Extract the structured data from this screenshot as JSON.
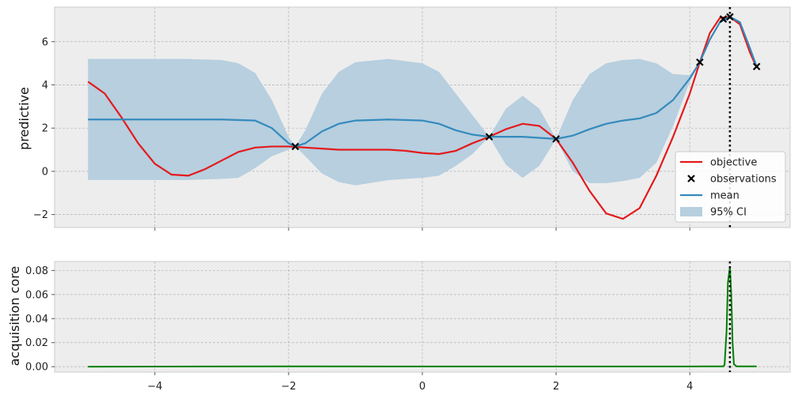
{
  "chart_data": [
    {
      "type": "line",
      "ylabel": "predictive",
      "xlim": [
        -5.5,
        5.5
      ],
      "ylim": [
        -2.6,
        7.6
      ],
      "yticks": [
        -2,
        0,
        2,
        4,
        6
      ],
      "ytick_labels": [
        "−2",
        "0",
        "2",
        "4",
        "6"
      ],
      "xticks": [
        -4,
        -2,
        0,
        2,
        4
      ],
      "grid": true,
      "legend_position": "bottom-right",
      "legend": [
        "objective",
        "observations",
        "mean",
        "95% CI"
      ],
      "colors": {
        "objective": "#e41a1c",
        "mean": "#348abd",
        "ci": "#b7cfdf",
        "observations": "#000000",
        "background": "#ededed"
      },
      "objective": {
        "x": [
          -5.0,
          -4.75,
          -4.5,
          -4.25,
          -4.0,
          -3.75,
          -3.5,
          -3.25,
          -3.0,
          -2.75,
          -2.5,
          -2.25,
          -2.0,
          -1.75,
          -1.5,
          -1.25,
          -1.0,
          -0.75,
          -0.5,
          -0.25,
          0.0,
          0.25,
          0.5,
          0.75,
          1.0,
          1.25,
          1.5,
          1.75,
          2.0,
          2.25,
          2.5,
          2.75,
          3.0,
          3.25,
          3.5,
          3.75,
          4.0,
          4.15,
          4.3,
          4.45,
          4.6,
          4.75,
          4.9,
          5.0
        ],
        "y": [
          4.15,
          3.6,
          2.5,
          1.3,
          0.35,
          -0.15,
          -0.2,
          0.1,
          0.5,
          0.9,
          1.1,
          1.15,
          1.15,
          1.1,
          1.05,
          1.0,
          1.0,
          1.0,
          1.0,
          0.95,
          0.85,
          0.8,
          0.95,
          1.3,
          1.6,
          1.95,
          2.2,
          2.1,
          1.5,
          0.4,
          -0.9,
          -1.95,
          -2.2,
          -1.7,
          -0.2,
          1.6,
          3.6,
          5.05,
          6.4,
          7.1,
          7.15,
          6.8,
          5.5,
          4.8
        ]
      },
      "mean": {
        "x": [
          -5.0,
          -4.5,
          -4.0,
          -3.5,
          -3.0,
          -2.5,
          -2.25,
          -2.0,
          -1.9,
          -1.75,
          -1.5,
          -1.25,
          -1.0,
          -0.5,
          0.0,
          0.25,
          0.5,
          0.75,
          1.0,
          1.25,
          1.5,
          1.75,
          2.0,
          2.25,
          2.5,
          2.75,
          3.0,
          3.25,
          3.5,
          3.75,
          4.0,
          4.15,
          4.3,
          4.45,
          4.6,
          4.75,
          4.9,
          5.0
        ],
        "y": [
          2.4,
          2.4,
          2.4,
          2.4,
          2.4,
          2.35,
          2.0,
          1.3,
          1.15,
          1.3,
          1.85,
          2.2,
          2.35,
          2.4,
          2.35,
          2.2,
          1.9,
          1.7,
          1.6,
          1.6,
          1.6,
          1.55,
          1.5,
          1.65,
          1.95,
          2.2,
          2.35,
          2.45,
          2.7,
          3.3,
          4.3,
          5.05,
          6.1,
          6.9,
          7.15,
          6.9,
          5.7,
          4.85
        ]
      },
      "ci": {
        "x": [
          -5.0,
          -4.5,
          -4.0,
          -3.5,
          -3.0,
          -2.75,
          -2.5,
          -2.25,
          -2.0,
          -1.9,
          -1.75,
          -1.5,
          -1.25,
          -1.0,
          -0.5,
          0.0,
          0.25,
          0.5,
          0.75,
          1.0,
          1.25,
          1.5,
          1.75,
          2.0,
          2.25,
          2.5,
          2.75,
          3.0,
          3.25,
          3.5,
          3.75,
          4.0,
          4.15,
          4.3,
          4.45,
          4.6,
          4.75,
          4.9,
          5.0
        ],
        "upper": [
          5.2,
          5.2,
          5.2,
          5.2,
          5.15,
          5.0,
          4.55,
          3.3,
          1.6,
          1.15,
          1.9,
          3.6,
          4.6,
          5.05,
          5.2,
          5.0,
          4.6,
          3.6,
          2.6,
          1.6,
          2.9,
          3.5,
          2.9,
          1.5,
          3.3,
          4.5,
          5.0,
          5.15,
          5.2,
          5.0,
          4.5,
          4.45,
          5.05,
          6.15,
          6.95,
          7.2,
          6.95,
          5.75,
          4.9
        ],
        "lower": [
          -0.4,
          -0.4,
          -0.4,
          -0.4,
          -0.35,
          -0.3,
          0.15,
          0.7,
          1.0,
          1.15,
          0.7,
          -0.1,
          -0.5,
          -0.65,
          -0.4,
          -0.3,
          -0.2,
          0.25,
          0.8,
          1.6,
          0.3,
          -0.3,
          0.25,
          1.5,
          0.0,
          -0.55,
          -0.55,
          -0.45,
          -0.3,
          0.4,
          2.1,
          4.15,
          5.05,
          6.05,
          6.85,
          7.1,
          6.85,
          5.65,
          4.8
        ]
      },
      "observations": {
        "x": [
          -1.9,
          1.0,
          2.0,
          4.15,
          4.5,
          4.6,
          5.0
        ],
        "y": [
          1.15,
          1.6,
          1.5,
          5.05,
          7.05,
          7.15,
          4.85
        ]
      },
      "vline_x": 4.6
    },
    {
      "type": "line",
      "ylabel": "acquisition core",
      "xlim": [
        -5.5,
        5.5
      ],
      "ylim": [
        -0.0045,
        0.0875
      ],
      "yticks": [
        0.0,
        0.02,
        0.04,
        0.06,
        0.08
      ],
      "ytick_labels": [
        "0.00",
        "0.02",
        "0.04",
        "0.06",
        "0.08"
      ],
      "xticks": [
        -4,
        -2,
        0,
        2,
        4
      ],
      "xtick_labels": [
        "−4",
        "−2",
        "0",
        "2",
        "4"
      ],
      "grid": true,
      "colors": {
        "acquisition": "#008000",
        "background": "#ededed"
      },
      "acquisition": {
        "x": [
          -5.0,
          -2.0,
          0.0,
          2.0,
          4.0,
          4.5,
          4.52,
          4.55,
          4.57,
          4.6,
          4.62,
          4.64,
          4.66,
          4.7,
          5.0
        ],
        "y": [
          0.0,
          0.0003,
          0.0002,
          0.0002,
          0.0002,
          0.0003,
          0.0015,
          0.03,
          0.07,
          0.083,
          0.06,
          0.02,
          0.002,
          0.0003,
          0.0003
        ]
      },
      "vline_x": 4.6
    }
  ]
}
